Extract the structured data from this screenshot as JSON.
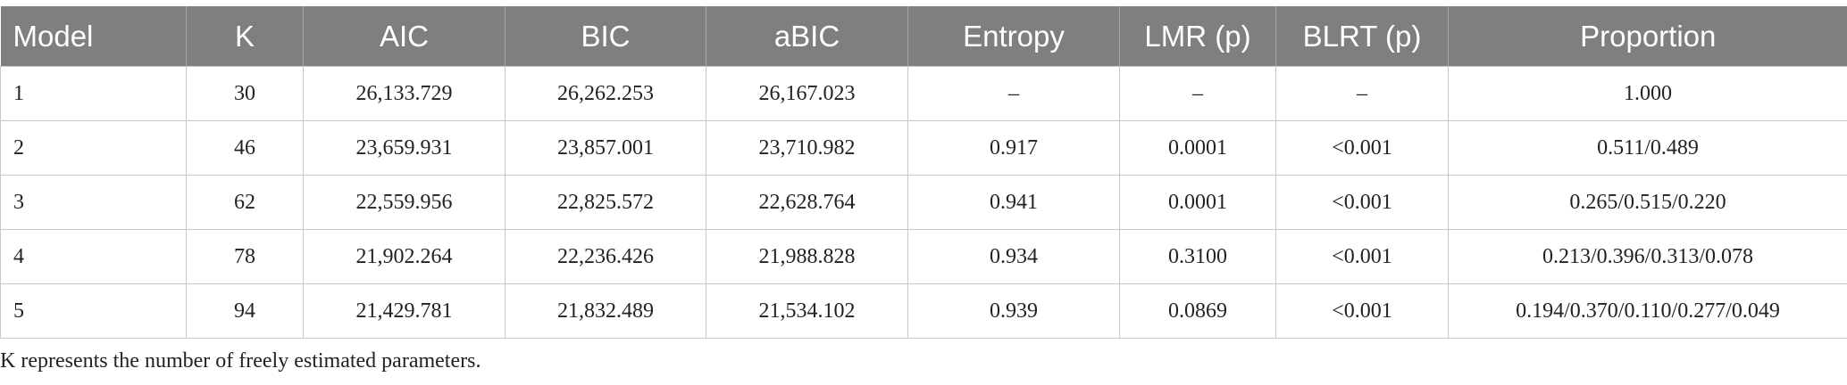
{
  "table": {
    "headers": [
      "Model",
      "K",
      "AIC",
      "BIC",
      "aBIC",
      "Entropy",
      "LMR (p)",
      "BLRT (p)",
      "Proportion"
    ],
    "rows": [
      [
        "1",
        "30",
        "26,133.729",
        "26,262.253",
        "26,167.023",
        "–",
        "–",
        "–",
        "1.000"
      ],
      [
        "2",
        "46",
        "23,659.931",
        "23,857.001",
        "23,710.982",
        "0.917",
        "0.0001",
        "<0.001",
        "0.511/0.489"
      ],
      [
        "3",
        "62",
        "22,559.956",
        "22,825.572",
        "22,628.764",
        "0.941",
        "0.0001",
        "<0.001",
        "0.265/0.515/0.220"
      ],
      [
        "4",
        "78",
        "21,902.264",
        "22,236.426",
        "21,988.828",
        "0.934",
        "0.3100",
        "<0.001",
        "0.213/0.396/0.313/0.078"
      ],
      [
        "5",
        "94",
        "21,429.781",
        "21,832.489",
        "21,534.102",
        "0.939",
        "0.0869",
        "<0.001",
        "0.194/0.370/0.110/0.277/0.049"
      ]
    ]
  },
  "footnote": "K represents the number of freely estimated parameters."
}
